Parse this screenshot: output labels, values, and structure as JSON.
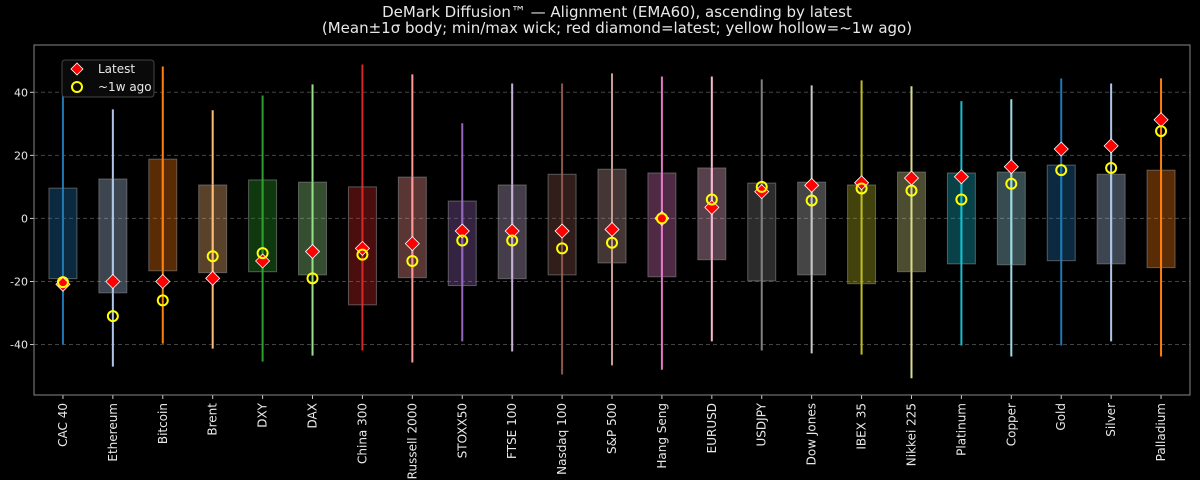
{
  "chart_data": {
    "type": "box",
    "title": "DeMark Diffusion™ — Alignment (EMA60), ascending by latest",
    "subtitle": "(Mean±1σ body; min/max wick; red diamond=latest; yellow hollow=~1w ago)",
    "xlabel": "",
    "ylabel": "",
    "ylim": [
      -56,
      55
    ],
    "yticks": [
      -40,
      -20,
      0,
      20,
      40
    ],
    "grid": "horizontal dashed",
    "legend_position": "top-left",
    "legend": [
      {
        "label": "Latest",
        "marker": "red-diamond",
        "color": "#ff0000"
      },
      {
        "label": "~1w ago",
        "marker": "yellow-hollow-circle",
        "color": "#ffff00"
      }
    ],
    "categories": [
      "CAC 40",
      "Ethereum",
      "Bitcoin",
      "Brent",
      "DXY",
      "DAX",
      "China 300",
      "Russell 2000",
      "STOXX50",
      "FTSE 100",
      "Nasdaq 100",
      "S&P 500",
      "Hang Seng",
      "EURUSD",
      "USDJPY",
      "Dow Jones",
      "IBEX 35",
      "Nikkei 225",
      "Platinum",
      "Copper",
      "Gold",
      "Silver",
      "Palladium"
    ],
    "colors": [
      "#1f77b4",
      "#aec7e8",
      "#ff7f0e",
      "#ffbb78",
      "#2ca02c",
      "#98df8a",
      "#d62728",
      "#ff9896",
      "#9467bd",
      "#c5b0d5",
      "#8c564b",
      "#c49c94",
      "#e377c2",
      "#f7b6d2",
      "#7f7f7f",
      "#c7c7c7",
      "#bcbd22",
      "#dbdb8d",
      "#17becf",
      "#9edae5",
      "#1f77b4",
      "#aec7e8",
      "#ff7f0e"
    ],
    "body_top": [
      9.6,
      12.5,
      18.8,
      10.6,
      12.2,
      11.5,
      10.0,
      13.1,
      5.5,
      10.6,
      14.0,
      15.6,
      14.4,
      16.0,
      11.2,
      11.5,
      10.6,
      14.7,
      14.4,
      14.7,
      16.9,
      14.0,
      15.3
    ],
    "body_bottom": [
      -19.1,
      -23.6,
      -16.6,
      -17.2,
      -16.9,
      -17.9,
      -27.4,
      -18.8,
      -21.3,
      -19.1,
      -17.9,
      -14.1,
      -18.5,
      -13.1,
      -19.8,
      -17.9,
      -20.7,
      -16.9,
      -14.4,
      -14.7,
      -13.4,
      -14.4,
      -15.6
    ],
    "max": [
      39.4,
      34.6,
      48.2,
      34.3,
      39.0,
      42.5,
      48.8,
      45.7,
      30.2,
      42.8,
      42.8,
      46.0,
      45.0,
      45.0,
      44.1,
      42.2,
      43.8,
      41.9,
      37.2,
      37.8,
      44.4,
      42.8,
      44.4
    ],
    "min": [
      -40.0,
      -47.0,
      -39.7,
      -41.3,
      -45.4,
      -43.5,
      -41.9,
      -45.7,
      -39.0,
      -42.2,
      -49.5,
      -46.6,
      -48.0,
      -39.0,
      -41.9,
      -42.8,
      -43.2,
      -50.7,
      -40.3,
      -43.8,
      -40.3,
      -39.0,
      -43.8
    ],
    "latest": [
      -20.9,
      -20.0,
      -20.0,
      -19.0,
      -13.5,
      -10.5,
      -9.5,
      -8.0,
      -4.0,
      -4.0,
      -4.0,
      -3.5,
      0.0,
      3.5,
      8.5,
      10.5,
      11.3,
      12.8,
      13.2,
      16.4,
      22.0,
      23.0,
      31.3
    ],
    "week_ago": [
      -20.2,
      -31.0,
      -26.0,
      -12.0,
      -11.0,
      -19.0,
      -11.5,
      -13.5,
      -7.0,
      -7.0,
      -9.5,
      -7.7,
      0.0,
      6.0,
      10.0,
      5.7,
      9.5,
      8.8,
      6.0,
      11.0,
      15.3,
      16.0,
      27.7
    ]
  }
}
